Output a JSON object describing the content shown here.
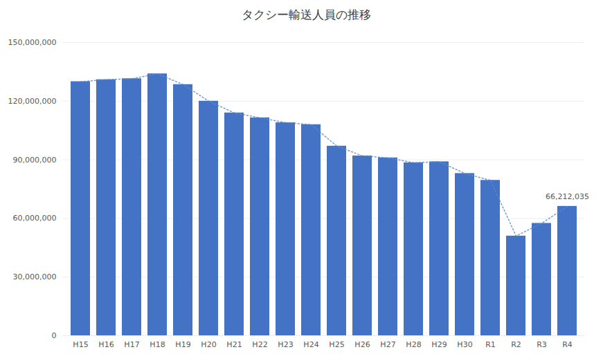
{
  "chart_data": {
    "type": "bar",
    "title": "タクシー輸送人員の推移",
    "categories": [
      "H15",
      "H16",
      "H17",
      "H18",
      "H19",
      "H20",
      "H21",
      "H22",
      "H23",
      "H24",
      "H25",
      "H26",
      "H27",
      "H28",
      "H29",
      "H30",
      "R1",
      "R2",
      "R3",
      "R4"
    ],
    "series": [
      {
        "type": "bar",
        "color": "#4472C4",
        "values": [
          130000000,
          131000000,
          131500000,
          134000000,
          128500000,
          120000000,
          114000000,
          111500000,
          109000000,
          108000000,
          97000000,
          92000000,
          91000000,
          88500000,
          89000000,
          83000000,
          79500000,
          51000000,
          57500000,
          66212035
        ]
      },
      {
        "type": "line",
        "color": "#5b8cc8",
        "line_style": "dotted",
        "values": [
          130000000,
          131000000,
          131500000,
          134000000,
          128500000,
          120000000,
          114000000,
          111500000,
          109000000,
          108000000,
          97000000,
          92000000,
          91000000,
          88500000,
          89000000,
          83000000,
          79500000,
          51000000,
          57500000,
          66212035
        ]
      }
    ],
    "annotations": [
      {
        "text": "66,212,035",
        "x": "R4",
        "y": 66212035
      }
    ],
    "ylim": [
      0,
      150000000
    ],
    "yticks": [
      0,
      {
        "value": 30000000,
        "label": "30,000,000"
      },
      {
        "value": 60000000,
        "label": "60,000,000"
      },
      {
        "value": 90000000,
        "label": "90,000,000"
      },
      {
        "value": 120000000,
        "label": "120,000,000"
      },
      {
        "value": 150000000,
        "label": "150,000,000"
      }
    ],
    "grid": true
  }
}
